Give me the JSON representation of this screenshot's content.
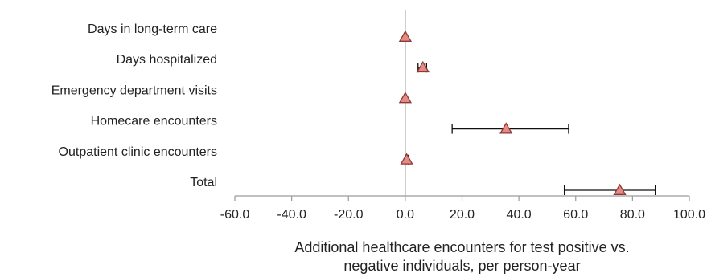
{
  "chart_data": {
    "type": "scatter",
    "orientation": "horizontal",
    "xlabel_lines": [
      "Additional healthcare encounters for test positive vs.",
      "negative individuals, per person-year"
    ],
    "xlim": [
      -60,
      100
    ],
    "xticks": [
      "-60.0",
      "-40.0",
      "-20.0",
      "0.0",
      "20.0",
      "40.0",
      "60.0",
      "80.0",
      "100.0"
    ],
    "xtick_values": [
      -60,
      -40,
      -20,
      0,
      20,
      40,
      60,
      80,
      100
    ],
    "categories": [
      "Days in long-term care",
      "Days hospitalized",
      "Emergency department visits",
      "Homecare encounters",
      "Outpatient clinic encounters",
      "Total"
    ],
    "values": [
      0.0,
      6.2,
      0.0,
      35.5,
      0.5,
      75.5
    ],
    "ci_low": [
      0.0,
      4.5,
      0.0,
      16.5,
      0.0,
      56.0
    ],
    "ci_high": [
      0.0,
      7.5,
      0.0,
      57.5,
      1.0,
      88.0
    ],
    "marker": "triangle",
    "grid": false,
    "colors": {
      "marker_fill": "#e48b86",
      "marker_stroke": "#8c3a36",
      "axis": "#9a9a9a",
      "error_bar": "#111111"
    }
  }
}
